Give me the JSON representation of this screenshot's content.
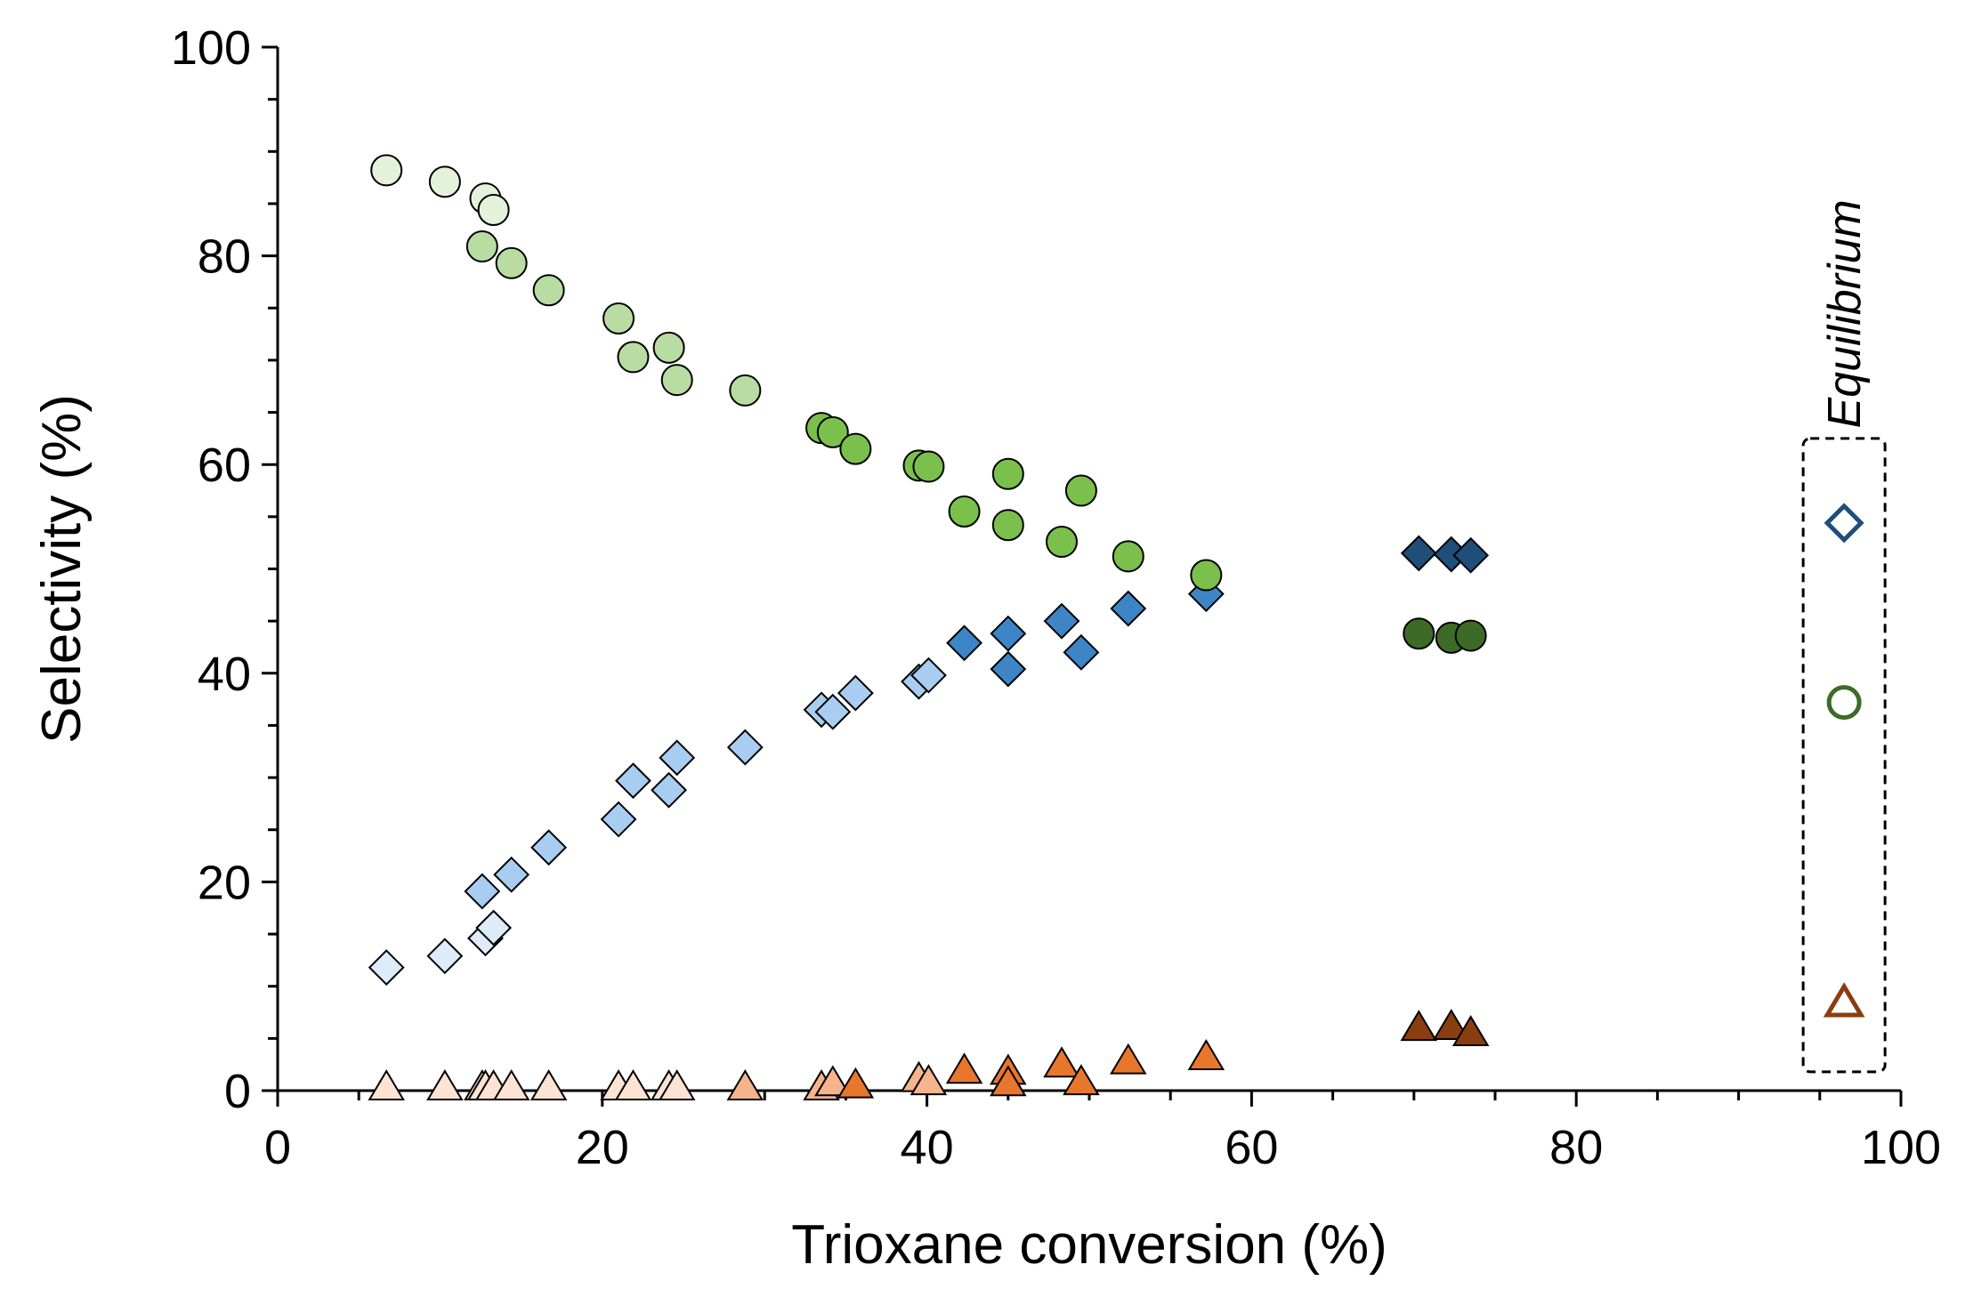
{
  "chart_data": {
    "type": "scatter",
    "title": "",
    "xlabel": "Trioxane conversion (%)",
    "ylabel": "Selectivity (%)",
    "xlim": [
      0,
      100
    ],
    "ylim": [
      0,
      100
    ],
    "x_ticks": [
      "0",
      "20",
      "40",
      "60",
      "80",
      "100"
    ],
    "y_ticks": [
      "0",
      "20",
      "40",
      "60",
      "80",
      "100"
    ],
    "grid": false,
    "colors": {
      "circle": [
        "#e4f2dc",
        "#b8dca2",
        "#7bbf4c",
        "#3d6b25"
      ],
      "diamond": [
        "#deebf9",
        "#a9cdf0",
        "#3d85c6",
        "#1f4e79"
      ],
      "triangle": [
        "#fde3d3",
        "#f6b48d",
        "#e8772e",
        "#8a3e0f"
      ],
      "equilibrium_diamond": "#1f4e79",
      "equilibrium_circle": "#3d6b25",
      "equilibrium_triangle": "#8a3e0f"
    },
    "series": [
      {
        "name": "circle",
        "marker": "circle",
        "points": [
          {
            "x": 6.7,
            "y": 88.2,
            "shade": 0
          },
          {
            "x": 10.3,
            "y": 87.1,
            "shade": 0
          },
          {
            "x": 12.8,
            "y": 85.5,
            "shade": 0
          },
          {
            "x": 13.3,
            "y": 84.4,
            "shade": 0
          },
          {
            "x": 12.6,
            "y": 80.9,
            "shade": 1
          },
          {
            "x": 14.4,
            "y": 79.3,
            "shade": 1
          },
          {
            "x": 16.7,
            "y": 76.7,
            "shade": 1
          },
          {
            "x": 21.0,
            "y": 74.0,
            "shade": 1
          },
          {
            "x": 21.9,
            "y": 70.3,
            "shade": 1
          },
          {
            "x": 24.1,
            "y": 71.2,
            "shade": 1
          },
          {
            "x": 24.6,
            "y": 68.1,
            "shade": 1
          },
          {
            "x": 28.8,
            "y": 67.1,
            "shade": 1
          },
          {
            "x": 33.5,
            "y": 63.5,
            "shade": 2
          },
          {
            "x": 34.2,
            "y": 63.1,
            "shade": 2
          },
          {
            "x": 35.6,
            "y": 61.5,
            "shade": 2
          },
          {
            "x": 39.5,
            "y": 59.9,
            "shade": 2
          },
          {
            "x": 40.1,
            "y": 59.8,
            "shade": 2
          },
          {
            "x": 45.0,
            "y": 59.1,
            "shade": 2
          },
          {
            "x": 49.5,
            "y": 57.5,
            "shade": 2
          },
          {
            "x": 42.3,
            "y": 55.5,
            "shade": 2
          },
          {
            "x": 45.0,
            "y": 54.2,
            "shade": 2
          },
          {
            "x": 48.3,
            "y": 52.6,
            "shade": 2
          },
          {
            "x": 52.4,
            "y": 51.2,
            "shade": 2
          },
          {
            "x": 57.2,
            "y": 49.4,
            "shade": 2
          },
          {
            "x": 70.3,
            "y": 43.8,
            "shade": 3
          },
          {
            "x": 72.3,
            "y": 43.4,
            "shade": 3
          },
          {
            "x": 73.5,
            "y": 43.6,
            "shade": 3
          }
        ]
      },
      {
        "name": "diamond",
        "marker": "diamond",
        "points": [
          {
            "x": 6.7,
            "y": 11.8,
            "shade": 0
          },
          {
            "x": 10.3,
            "y": 12.9,
            "shade": 0
          },
          {
            "x": 12.8,
            "y": 14.6,
            "shade": 0
          },
          {
            "x": 13.3,
            "y": 15.6,
            "shade": 0
          },
          {
            "x": 12.6,
            "y": 19.1,
            "shade": 1
          },
          {
            "x": 14.4,
            "y": 20.7,
            "shade": 1
          },
          {
            "x": 16.7,
            "y": 23.3,
            "shade": 1
          },
          {
            "x": 21.0,
            "y": 26.0,
            "shade": 1
          },
          {
            "x": 21.9,
            "y": 29.7,
            "shade": 1
          },
          {
            "x": 24.1,
            "y": 28.8,
            "shade": 1
          },
          {
            "x": 24.6,
            "y": 31.9,
            "shade": 1
          },
          {
            "x": 28.8,
            "y": 32.9,
            "shade": 1
          },
          {
            "x": 33.5,
            "y": 36.5,
            "shade": 1
          },
          {
            "x": 34.2,
            "y": 36.3,
            "shade": 1
          },
          {
            "x": 35.6,
            "y": 38.1,
            "shade": 1
          },
          {
            "x": 39.5,
            "y": 39.2,
            "shade": 1
          },
          {
            "x": 40.1,
            "y": 39.8,
            "shade": 1
          },
          {
            "x": 42.3,
            "y": 42.9,
            "shade": 2
          },
          {
            "x": 45.0,
            "y": 43.8,
            "shade": 2
          },
          {
            "x": 45.0,
            "y": 40.4,
            "shade": 2
          },
          {
            "x": 48.3,
            "y": 45.0,
            "shade": 2
          },
          {
            "x": 49.5,
            "y": 42.0,
            "shade": 2
          },
          {
            "x": 52.4,
            "y": 46.2,
            "shade": 2
          },
          {
            "x": 57.2,
            "y": 47.6,
            "shade": 2
          },
          {
            "x": 70.3,
            "y": 51.5,
            "shade": 3
          },
          {
            "x": 72.3,
            "y": 51.4,
            "shade": 3
          },
          {
            "x": 73.5,
            "y": 51.3,
            "shade": 3
          }
        ]
      },
      {
        "name": "triangle",
        "marker": "triangle",
        "points": [
          {
            "x": 6.7,
            "y": 0.0,
            "shade": 0
          },
          {
            "x": 10.3,
            "y": 0.0,
            "shade": 0
          },
          {
            "x": 12.6,
            "y": 0.0,
            "shade": 0
          },
          {
            "x": 12.8,
            "y": 0.0,
            "shade": 0
          },
          {
            "x": 13.3,
            "y": 0.0,
            "shade": 0
          },
          {
            "x": 14.4,
            "y": 0.0,
            "shade": 0
          },
          {
            "x": 16.7,
            "y": 0.0,
            "shade": 0
          },
          {
            "x": 21.0,
            "y": 0.0,
            "shade": 0
          },
          {
            "x": 21.9,
            "y": 0.0,
            "shade": 0
          },
          {
            "x": 24.1,
            "y": 0.0,
            "shade": 0
          },
          {
            "x": 24.6,
            "y": 0.0,
            "shade": 0
          },
          {
            "x": 28.8,
            "y": 0.0,
            "shade": 1
          },
          {
            "x": 33.5,
            "y": 0.0,
            "shade": 1
          },
          {
            "x": 34.2,
            "y": 0.4,
            "shade": 1
          },
          {
            "x": 35.6,
            "y": 0.2,
            "shade": 2
          },
          {
            "x": 39.5,
            "y": 0.8,
            "shade": 1
          },
          {
            "x": 40.1,
            "y": 0.5,
            "shade": 1
          },
          {
            "x": 42.3,
            "y": 1.6,
            "shade": 2
          },
          {
            "x": 45.0,
            "y": 1.5,
            "shade": 2
          },
          {
            "x": 45.0,
            "y": 0.4,
            "shade": 2
          },
          {
            "x": 48.3,
            "y": 2.2,
            "shade": 2
          },
          {
            "x": 49.5,
            "y": 0.5,
            "shade": 2
          },
          {
            "x": 52.4,
            "y": 2.5,
            "shade": 2
          },
          {
            "x": 57.2,
            "y": 2.9,
            "shade": 2
          },
          {
            "x": 70.3,
            "y": 5.7,
            "shade": 3
          },
          {
            "x": 72.3,
            "y": 5.8,
            "shade": 3
          },
          {
            "x": 73.5,
            "y": 5.2,
            "shade": 3
          }
        ]
      }
    ],
    "equilibrium": {
      "label": "Equilibrium",
      "x": 96.5,
      "box_y_range": [
        1.8,
        62.5
      ],
      "points": [
        {
          "marker": "diamond",
          "y": 54.4
        },
        {
          "marker": "circle",
          "y": 37.2
        },
        {
          "marker": "triangle",
          "y": 8.1
        }
      ]
    }
  }
}
